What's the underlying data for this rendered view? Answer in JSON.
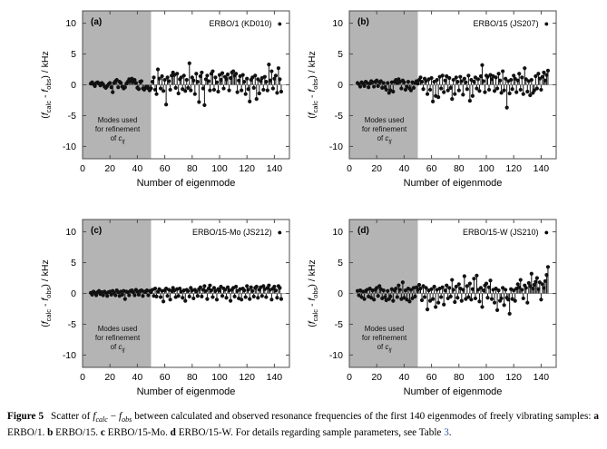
{
  "styles": {
    "shade_color": "#b4b4b4",
    "frame_color": "#4d4d4d",
    "zero_line_color": "#8f8f8f",
    "point_color": "#111111",
    "link_color": "#2f5fae",
    "legend_marker_glyph": "●"
  },
  "axes_common": {
    "xlabel": "Number of eigenmode",
    "ylabel_text": "(f_calc - f_obs) / kHz",
    "ylabel_segments": [
      {
        "t": "("
      },
      {
        "t": "f",
        "i": true
      },
      {
        "t": "calc",
        "sub": true
      },
      {
        "t": " - "
      },
      {
        "t": "f",
        "i": true
      },
      {
        "t": "obs",
        "sub": true
      },
      {
        "t": ") / kHz"
      }
    ],
    "shade_note_line1": "Modes used",
    "shade_note_line2": "for refinement",
    "shade_note_line3_pre": "of ",
    "shade_note_line3_var": "c",
    "shade_note_line3_sub": "ij"
  },
  "chart_data": [
    {
      "type": "stem",
      "panel_label": "(a)",
      "legend": "ERBO/1 (KD010)",
      "xlabel": "Number of eigenmode",
      "ylabel": "(f_calc - f_obs) / kHz",
      "xlim": [
        0,
        151
      ],
      "ylim": [
        -12,
        12
      ],
      "xticks": [
        0,
        20,
        40,
        60,
        80,
        100,
        120,
        140
      ],
      "yticks": [
        -10,
        -5,
        0,
        5,
        10
      ],
      "shaded_region": {
        "x_from": 0,
        "x_to": 50,
        "note": "Modes used for refinement of cij"
      },
      "x_start": 6,
      "values": [
        0.2,
        0.4,
        0.1,
        -0.2,
        0.3,
        0.4,
        0.2,
        -0.1,
        0.3,
        0.1,
        -0.3,
        -0.5,
        -0.2,
        0.1,
        0.3,
        -0.4,
        -1.2,
        0.3,
        0.6,
        0.8,
        -0.4,
        0.5,
        0.3,
        -0.3,
        -0.6,
        -0.4,
        0.2,
        0.5,
        0.9,
        0.6,
        1.0,
        0.5,
        0.8,
        0.3,
        -0.5,
        -0.7,
        0.5,
        0.6,
        -0.6,
        -0.8,
        -0.5,
        -0.3,
        -0.6,
        -0.9,
        -0.6,
        0.5,
        1.2,
        -0.8,
        -1.5,
        2.5,
        1.0,
        -0.6,
        1.4,
        -1.0,
        0.8,
        -3.2,
        1.2,
        0.6,
        -0.8,
        1.5,
        2.0,
        1.6,
        -0.5,
        1.8,
        -1.4,
        0.9,
        1.2,
        -0.7,
        1.5,
        -1.0,
        0.8,
        -0.5,
        3.5,
        -0.9,
        1.2,
        0.7,
        -1.5,
        1.8,
        0.5,
        -2.8,
        1.4,
        2.0,
        -0.6,
        -3.3,
        0.9,
        1.5,
        0.6,
        -0.9,
        1.8,
        2.2,
        -0.8,
        1.2,
        0.4,
        -1.1,
        1.6,
        0.8,
        1.9,
        -0.6,
        1.3,
        0.9,
        1.7,
        -0.9,
        1.1,
        2.0,
        2.2,
        1.5,
        1.8,
        -1.2,
        0.7,
        1.4,
        -0.9,
        1.6,
        0.5,
        -1.5,
        1.0,
        -0.7,
        -2.7,
        0.8,
        1.2,
        -0.5,
        1.5,
        -2.3,
        0.9,
        -1.4,
        0.6,
        1.1,
        -0.8,
        1.3,
        0.5,
        -0.9,
        3.3,
        0.7,
        2.2,
        -0.6,
        1.0,
        1.5,
        -1.3,
        2.7,
        0.9,
        -1.1
      ]
    },
    {
      "type": "stem",
      "panel_label": "(b)",
      "legend": "ERBO/15 (JS207)",
      "xlabel": "Number of eigenmode",
      "ylabel": "(f_calc - f_obs) / kHz",
      "xlim": [
        0,
        151
      ],
      "ylim": [
        -12,
        12
      ],
      "xticks": [
        0,
        20,
        40,
        60,
        80,
        100,
        120,
        140
      ],
      "yticks": [
        -10,
        -5,
        0,
        5,
        10
      ],
      "shaded_region": {
        "x_from": 0,
        "x_to": 50,
        "note": "Modes used for refinement of cij"
      },
      "x_start": 6,
      "values": [
        0.3,
        0.1,
        -0.3,
        0.4,
        0.2,
        -0.2,
        0.5,
        0.3,
        -0.4,
        0.2,
        0.6,
        0.4,
        -0.3,
        0.5,
        0.7,
        -0.2,
        0.4,
        0.6,
        -0.5,
        0.3,
        -0.4,
        -0.8,
        0.3,
        -1.3,
        -0.9,
        0.4,
        -1.1,
        0.5,
        0.8,
        0.3,
        0.9,
        0.5,
        -0.6,
        0.7,
        0.4,
        -0.8,
        -0.3,
        0.5,
        -0.6,
        -0.9,
        0.4,
        -0.5,
        0.3,
        0.6,
        0.2,
        0.8,
        1.2,
        0.5,
        -0.7,
        1.0,
        0.6,
        -1.5,
        0.9,
        -0.8,
        1.1,
        -2.7,
        0.5,
        -1.8,
        0.8,
        -2.0,
        1.3,
        -0.6,
        1.5,
        -1.2,
        0.7,
        1.4,
        -0.9,
        1.1,
        -0.5,
        -2.3,
        0.8,
        -1.5,
        1.2,
        0.5,
        -0.9,
        1.3,
        0.6,
        -1.6,
        1.0,
        0.4,
        -0.7,
        1.5,
        -2.6,
        0.8,
        -1.8,
        0.5,
        1.2,
        -0.6,
        0.9,
        -1.0,
        1.4,
        3.2,
        0.6,
        -1.2,
        1.5,
        1.3,
        -0.8,
        1.6,
        0.9,
        1.4,
        -1.0,
        1.2,
        -0.6,
        1.8,
        0.7,
        -1.3,
        2.2,
        -0.9,
        1.0,
        -3.7,
        0.6,
        -1.4,
        0.8,
        -0.7,
        1.5,
        1.0,
        -1.2,
        0.7,
        1.8,
        -0.8,
        1.2,
        -1.5,
        2.7,
        0.9,
        -1.1,
        0.6,
        -1.7,
        0.8,
        -1.3,
        -0.9,
        1.4,
        -0.6,
        1.8,
        1.0,
        -0.8,
        1.3,
        2.0,
        0.7,
        1.6,
        2.3
      ]
    },
    {
      "type": "stem",
      "panel_label": "(c)",
      "legend": "ERBO/15-Mo (JS212)",
      "xlabel": "Number of eigenmode",
      "ylabel": "(f_calc - f_obs) / kHz",
      "xlim": [
        0,
        151
      ],
      "ylim": [
        -12,
        12
      ],
      "xticks": [
        0,
        20,
        40,
        60,
        80,
        100,
        120,
        140
      ],
      "yticks": [
        -10,
        -5,
        0,
        5,
        10
      ],
      "shaded_region": {
        "x_from": 0,
        "x_to": 50,
        "note": "Modes used for refinement of cij"
      },
      "x_start": 6,
      "values": [
        0.1,
        -0.2,
        0.3,
        0.1,
        -0.3,
        0.2,
        0.4,
        -0.1,
        0.2,
        -0.3,
        0.3,
        0.1,
        -0.4,
        0.2,
        0.3,
        -0.2,
        0.4,
        0.1,
        -0.3,
        0.5,
        0.2,
        -0.4,
        0.3,
        -0.2,
        0.4,
        -0.9,
        0.3,
        0.2,
        -0.3,
        0.4,
        0.5,
        0.2,
        -0.3,
        0.6,
        0.3,
        -0.2,
        0.4,
        0.5,
        -0.4,
        0.3,
        0.2,
        0.5,
        -0.3,
        0.4,
        0.2,
        0.6,
        -0.4,
        0.8,
        -0.5,
        0.3,
        0.7,
        -0.6,
        0.4,
        -1.3,
        0.5,
        0.8,
        -0.4,
        0.6,
        -1.0,
        0.4,
        0.9,
        0.5,
        -0.6,
        0.7,
        -0.4,
        0.8,
        0.3,
        -0.7,
        0.5,
        -1.2,
        0.6,
        0.4,
        -0.5,
        0.9,
        0.5,
        -0.8,
        0.6,
        0.3,
        -0.4,
        0.7,
        1.0,
        -0.5,
        0.6,
        1.2,
        0.4,
        -0.9,
        0.8,
        1.3,
        0.5,
        -0.6,
        0.9,
        0.4,
        -1.0,
        0.7,
        0.5,
        1.1,
        -0.4,
        0.8,
        0.6,
        -0.7,
        1.0,
        0.5,
        -1.2,
        0.6,
        0.9,
        -0.5,
        1.1,
        0.4,
        -0.8,
        0.7,
        -1.0,
        0.8,
        0.5,
        -0.6,
        1.2,
        0.6,
        -0.9,
        1.0,
        0.4,
        -0.5,
        0.9,
        1.1,
        -0.7,
        0.6,
        1.0,
        -0.4,
        1.2,
        0.7,
        -0.6,
        0.9,
        1.3,
        0.6,
        -1.0,
        0.8,
        1.1,
        0.5,
        -0.7,
        1.2,
        0.9,
        -0.9
      ]
    },
    {
      "type": "stem",
      "panel_label": "(d)",
      "legend": "ERBO/15-W (JS210)",
      "xlabel": "Number of eigenmode",
      "ylabel": "(f_calc - f_obs) / kHz",
      "xlim": [
        0,
        151
      ],
      "ylim": [
        -12,
        12
      ],
      "xticks": [
        0,
        20,
        40,
        60,
        80,
        100,
        120,
        140
      ],
      "yticks": [
        -10,
        -5,
        0,
        5,
        10
      ],
      "shaded_region": {
        "x_from": 0,
        "x_to": 50,
        "note": "Modes used for refinement of cij"
      },
      "x_start": 6,
      "values": [
        0.4,
        -0.3,
        0.5,
        -0.6,
        0.3,
        -0.9,
        0.4,
        0.6,
        -0.5,
        0.8,
        -0.7,
        0.5,
        -1.0,
        0.6,
        0.9,
        -0.4,
        1.2,
        0.7,
        -0.8,
        0.5,
        -0.6,
        -1.1,
        0.4,
        -0.9,
        -0.5,
        0.7,
        -1.2,
        0.5,
        0.8,
        -0.6,
        1.3,
        0.6,
        -0.9,
        1.8,
        -0.7,
        0.5,
        -1.0,
        0.8,
        -1.3,
        0.6,
        -0.8,
        0.9,
        -0.5,
        1.0,
        0.6,
        1.4,
        0.8,
        -1.1,
        1.2,
        -0.6,
        0.9,
        -2.6,
        0.5,
        -1.2,
        0.7,
        -0.9,
        1.1,
        -2.2,
        0.6,
        -1.5,
        0.8,
        -0.6,
        1.0,
        -1.8,
        0.5,
        1.3,
        -0.8,
        0.9,
        -0.5,
        2.2,
        0.6,
        -1.4,
        1.1,
        -0.7,
        1.5,
        0.8,
        -1.2,
        0.6,
        2.8,
        -0.9,
        1.2,
        -0.6,
        1.6,
        -1.0,
        0.7,
        2.4,
        -0.8,
        2.9,
        0.6,
        -1.3,
        0.9,
        -2.2,
        0.5,
        1.3,
        1.6,
        -0.7,
        1.0,
        2.1,
        -0.9,
        0.6,
        -1.5,
        0.8,
        -2.7,
        0.5,
        -1.2,
        -0.8,
        0.9,
        -1.9,
        0.6,
        -0.7,
        -1.0,
        -3.3,
        0.7,
        -0.9,
        0.5,
        -1.2,
        0.8,
        1.5,
        1.0,
        2.2,
        0.6,
        -0.8,
        1.3,
        0.9,
        -1.5,
        1.7,
        1.2,
        3.2,
        0.8,
        1.4,
        1.9,
        2.5,
        0.7,
        1.8,
        -1.0,
        1.5,
        0.9,
        2.0,
        3.0,
        4.3
      ]
    }
  ],
  "caption": {
    "segments": [
      {
        "t": "Figure 5",
        "b": true,
        "gap": true
      },
      {
        "t": " Scatter of "
      },
      {
        "t": "f",
        "i": true
      },
      {
        "t": "calc",
        "i": true,
        "sub": true
      },
      {
        "t": " − "
      },
      {
        "t": "f",
        "i": true
      },
      {
        "t": "obs",
        "i": true,
        "sub": true
      },
      {
        "t": " between calculated and observed resonance frequencies of the first 140 eigenmodes of freely vibrating samples: "
      },
      {
        "t": "a",
        "b": true
      },
      {
        "t": " ERBO/1. "
      },
      {
        "t": "b",
        "b": true
      },
      {
        "t": " ERBO/15. "
      },
      {
        "t": "c",
        "b": true
      },
      {
        "t": " ERBO/15-Mo. "
      },
      {
        "t": "d",
        "b": true
      },
      {
        "t": " ERBO/15-W. For details regarding sample parameters, see Table "
      },
      {
        "t": "3",
        "link": true
      },
      {
        "t": "."
      }
    ]
  }
}
